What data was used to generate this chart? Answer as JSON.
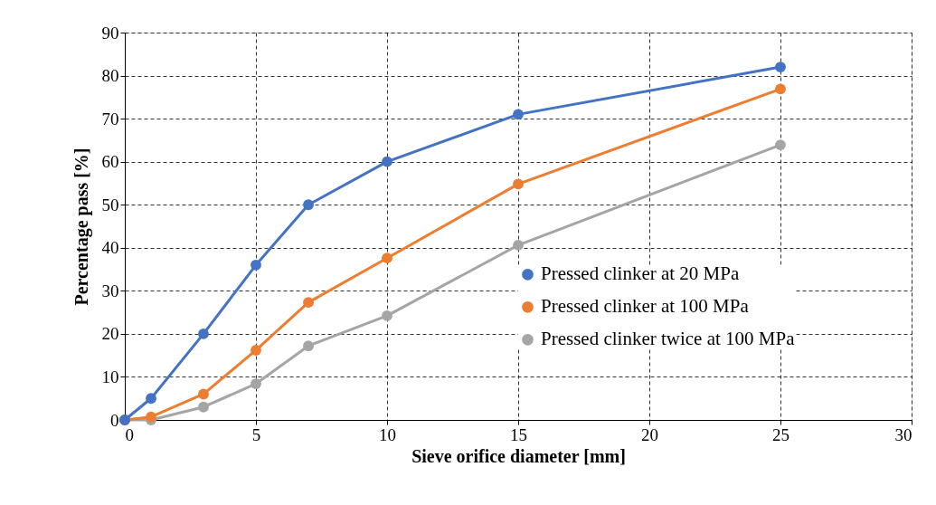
{
  "chart_data": {
    "type": "line",
    "xlabel": "Sieve orifice diameter [mm]",
    "ylabel": "Percentage pass [%]",
    "x": [
      0,
      1,
      3,
      5,
      7,
      10,
      15,
      25
    ],
    "series": [
      {
        "name": "Pressed clinker at 20 MPa",
        "color": "#4472c4",
        "values": [
          0,
          5,
          20,
          36,
          50,
          60,
          71,
          82
        ]
      },
      {
        "name": "Pressed clinker at 100 MPa",
        "color": "#ed7d31",
        "values": [
          0,
          0.7,
          6,
          16.2,
          27.3,
          37.6,
          54.8,
          76.9
        ]
      },
      {
        "name": "Pressed clinker twice at 100 MPa",
        "color": "#a5a5a5",
        "values": [
          0,
          0,
          3,
          8.4,
          17.2,
          24.2,
          40.6,
          63.9
        ]
      }
    ],
    "xlim": [
      0,
      30
    ],
    "xticks": [
      0,
      5,
      10,
      15,
      20,
      25,
      30
    ],
    "ylim": [
      0,
      90
    ],
    "yticks": [
      0,
      10,
      20,
      30,
      40,
      50,
      60,
      70,
      80,
      90
    ],
    "grid": true,
    "legend": "right",
    "marker": "circle",
    "line_style": "solid"
  }
}
